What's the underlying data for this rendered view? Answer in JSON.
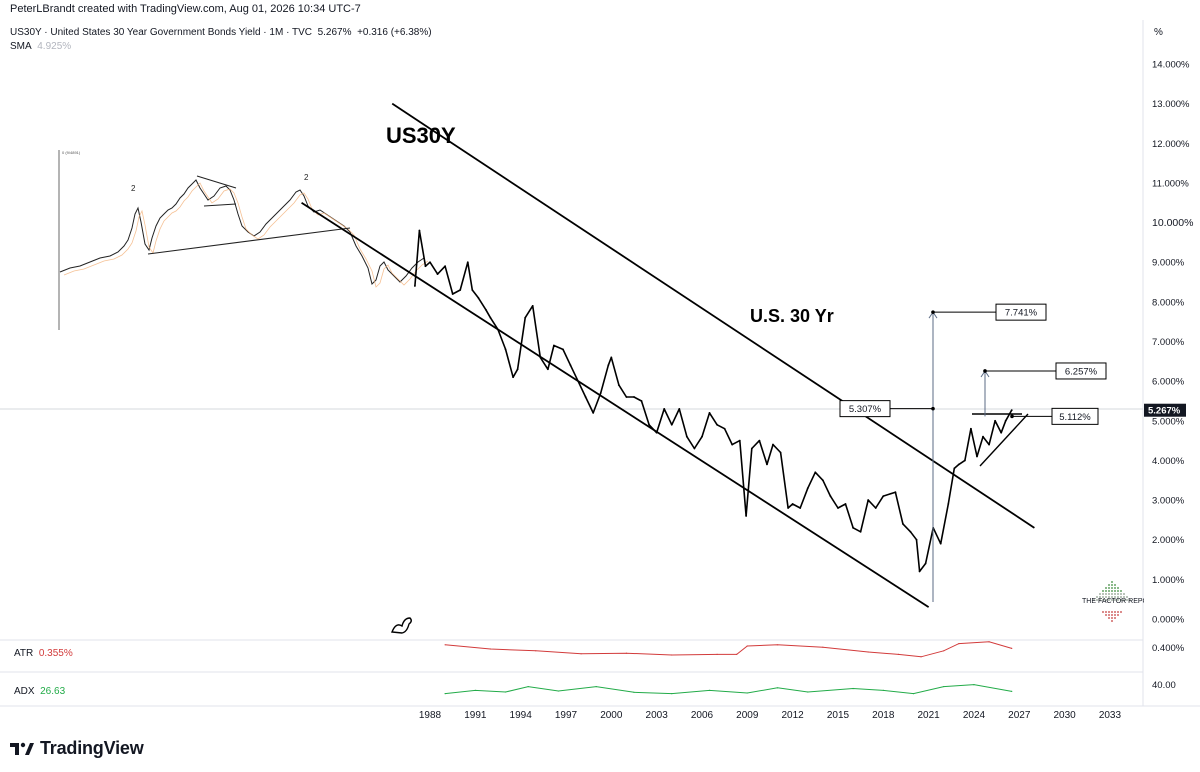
{
  "header": {
    "credit": "PeterLBrandt created with TradingView.com, Aug 01, 2026 10:34 UTC-7",
    "symbol_line": "US30Y · United States 30 Year Government Bonds Yield · 1M · TVC",
    "last_value": "5.267%",
    "change": "+0.316 (+6.38%)",
    "sma_label": "SMA",
    "sma_value": "4.925%",
    "unit_symbol": "%"
  },
  "annotations": {
    "title_main": "US30Y",
    "title_sub": "U.S. 30 Yr",
    "inset_marker": "2",
    "inset_marker2": "2",
    "inset_tiny": "0 (9/4891)",
    "targets": [
      "7.741%",
      "6.257%",
      "5.307%",
      "5.112%"
    ]
  },
  "indicators": {
    "atr_label": "ATR",
    "atr_value": "0.355%",
    "atr_axis": "0.400%",
    "adx_label": "ADX",
    "adx_value": "26.63",
    "adx_axis": "40.00"
  },
  "brand": {
    "name": "TradingView",
    "factor": "THE FACTOR REPC"
  },
  "colors": {
    "price": "#000000",
    "atr": "#d23b3b",
    "adx": "#22ab48",
    "sma": "#f2b27a",
    "axis_text": "#131722",
    "last_badge": "#131722"
  },
  "chart_data": {
    "type": "line",
    "title": "US30Y",
    "ylabel": "%",
    "ylim": [
      0,
      14.5
    ],
    "y_ticks": [
      "14.000%",
      "13.000%",
      "12.000%",
      "11.000%",
      "10.000%",
      "9.000%",
      "8.000%",
      "7.000%",
      "6.000%",
      "5.000%",
      "4.000%",
      "3.000%",
      "2.000%",
      "1.000%",
      "0.000%"
    ],
    "x_ticks": [
      "1988",
      "1991",
      "1994",
      "1997",
      "2000",
      "2003",
      "2006",
      "2009",
      "2012",
      "2015",
      "2018",
      "2021",
      "2024",
      "2027",
      "2030",
      "2033"
    ],
    "xlim": [
      1979.7,
      2034.7
    ],
    "last_value_label": "5.267%",
    "series": [
      {
        "x": [
          1987.0,
          1987.3,
          1987.7,
          1988.0,
          1988.5,
          1989.0,
          1989.5,
          1990.0,
          1990.5,
          1990.8,
          1991.2,
          1991.7,
          1992.0,
          1992.5,
          1993.0,
          1993.5,
          1993.8,
          1994.3,
          1994.8,
          1995.3,
          1995.8,
          1996.2,
          1996.8,
          1997.3,
          1997.8,
          1998.3,
          1998.8,
          1999.3,
          1999.8,
          2000.0,
          2000.5,
          2001.0,
          2001.5,
          2002.0,
          2002.5,
          2003.0,
          2003.5,
          2004.0,
          2004.5,
          2005.0,
          2005.5,
          2006.0,
          2006.5,
          2007.0,
          2007.5,
          2008.0,
          2008.5,
          2008.92,
          2009.3,
          2009.8,
          2010.3,
          2010.7,
          2011.2,
          2011.7,
          2012.0,
          2012.5,
          2013.0,
          2013.5,
          2014.0,
          2014.5,
          2015.0,
          2015.5,
          2016.0,
          2016.5,
          2017.0,
          2017.5,
          2018.0,
          2018.8,
          2019.3,
          2019.8,
          2020.2,
          2020.4,
          2020.8,
          2021.3,
          2021.8,
          2022.3,
          2022.7,
          2023.0,
          2023.4,
          2023.8,
          2024.2,
          2024.6,
          2025.0,
          2025.4,
          2025.8,
          2026.1,
          2026.5
        ],
        "y": [
          8.4,
          9.8,
          8.9,
          9.0,
          8.7,
          8.9,
          8.2,
          8.3,
          9.0,
          8.3,
          8.1,
          7.8,
          7.6,
          7.3,
          6.8,
          6.1,
          6.3,
          7.6,
          7.9,
          6.6,
          6.3,
          6.9,
          6.8,
          6.4,
          6.0,
          5.6,
          5.2,
          5.7,
          6.4,
          6.6,
          5.9,
          5.6,
          5.6,
          5.5,
          4.9,
          4.7,
          5.3,
          4.9,
          5.3,
          4.6,
          4.3,
          4.6,
          5.2,
          4.9,
          4.8,
          4.4,
          4.5,
          2.6,
          4.3,
          4.5,
          3.9,
          4.4,
          4.2,
          2.8,
          2.9,
          2.8,
          3.3,
          3.7,
          3.5,
          3.1,
          2.8,
          2.9,
          2.3,
          2.2,
          3.0,
          2.8,
          3.1,
          3.2,
          2.4,
          2.2,
          2.0,
          1.2,
          1.4,
          2.3,
          1.9,
          2.9,
          3.8,
          3.9,
          4.0,
          4.8,
          4.1,
          4.6,
          4.4,
          5.0,
          4.7,
          5.0,
          5.27
        ]
      }
    ],
    "channel": [
      {
        "x": [
          1985.5,
          2028.0
        ],
        "y": [
          13.0,
          2.3
        ]
      },
      {
        "x": [
          1979.5,
          2021.0
        ],
        "y": [
          10.5,
          0.3
        ]
      }
    ],
    "price_targets": [
      {
        "label": "7.741%",
        "y": 7.741
      },
      {
        "label": "6.257%",
        "y": 6.257
      },
      {
        "label": "5.307%",
        "y": 5.307
      },
      {
        "label": "5.112%",
        "y": 5.112
      }
    ],
    "atr": {
      "name": "ATR",
      "x": [
        1989.0,
        1992.0,
        1995.0,
        1998.0,
        2001.0,
        2004.0,
        2007.0,
        2008.3,
        2009.0,
        2011.0,
        2014.0,
        2017.0,
        2019.0,
        2020.5,
        2022.0,
        2023.0,
        2025.0,
        2026.5
      ],
      "y": [
        0.42,
        0.35,
        0.32,
        0.27,
        0.28,
        0.25,
        0.26,
        0.26,
        0.4,
        0.42,
        0.38,
        0.3,
        0.26,
        0.22,
        0.32,
        0.44,
        0.47,
        0.36
      ]
    },
    "adx": {
      "name": "ADX",
      "x": [
        1989.0,
        1991.0,
        1993.0,
        1994.5,
        1996.5,
        1999.0,
        2001.5,
        2004.0,
        2006.5,
        2009.0,
        2011.0,
        2013.0,
        2016.0,
        2018.0,
        2020.0,
        2022.0,
        2024.0,
        2026.5
      ],
      "y": [
        20,
        30,
        25,
        42,
        28,
        42,
        24,
        20,
        30,
        22,
        38,
        25,
        36,
        30,
        20,
        42,
        48,
        27
      ]
    }
  }
}
